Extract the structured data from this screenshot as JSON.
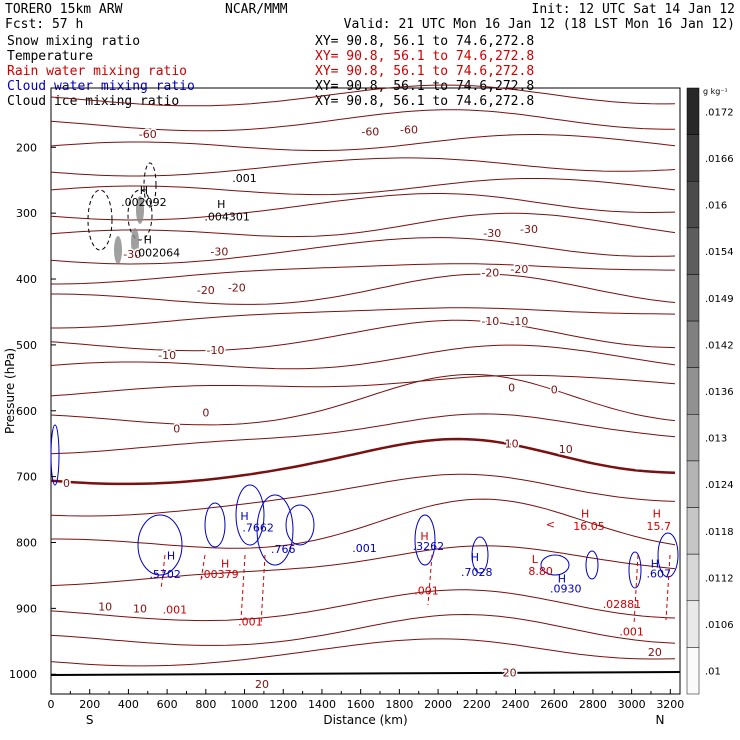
{
  "header": {
    "model": "TORERO  15km ARW",
    "org": "NCAR/MMM",
    "init": "Init: 12 UTC Sat 14 Jan 12",
    "fcst": "Fcst:   57 h",
    "valid": "Valid: 21 UTC Mon 16 Jan 12 (18 LST Mon 16 Jan 12)"
  },
  "fields": [
    {
      "name": "Snow mixing ratio",
      "xy": "XY=  90.8, 56.1 to  74.6,272.8",
      "color": "#000000",
      "xycolor": "#000000"
    },
    {
      "name": "Temperature",
      "xy": "XY=  90.8, 56.1 to  74.6,272.8",
      "color": "#000000",
      "xycolor": "#d00000"
    },
    {
      "name": "Rain water mixing ratio",
      "xy": "XY=  90.8, 56.1 to  74.6,272.8",
      "color": "#d00000",
      "xycolor": "#d00000"
    },
    {
      "name": "Cloud water mixing ratio",
      "xy": "XY=  90.8, 56.1 to  74.6,272.8",
      "color": "#0000c0",
      "xycolor": "#000000"
    },
    {
      "name": "Cloud ice mixing ratio",
      "xy": "XY=  90.8, 56.1 to  74.6,272.8",
      "color": "#000000",
      "xycolor": "#000000"
    }
  ],
  "chart_data": {
    "type": "contour",
    "xlabel": "Distance (km)",
    "ylabel": "Pressure (hPa)",
    "xlim": [
      0,
      3250
    ],
    "ylim": [
      110,
      1030
    ],
    "y_log": false,
    "x_ticks": [
      0,
      200,
      400,
      600,
      800,
      1000,
      1200,
      1400,
      1600,
      1800,
      2000,
      2200,
      2400,
      2600,
      2800,
      3000,
      3200
    ],
    "y_ticks": [
      200,
      300,
      400,
      500,
      600,
      700,
      800,
      900,
      1000
    ],
    "x_end_labels": {
      "left": "S",
      "right": "N"
    },
    "colorbar": {
      "unit": "g kg⁻¹",
      "labels": [
        ".0172",
        ".0166",
        ".016",
        ".0154",
        ".0149",
        ".0142",
        ".0136",
        ".013",
        ".0124",
        ".0118",
        ".0112",
        ".0106",
        ".01"
      ]
    },
    "temperature_labels": [
      {
        "x": 500,
        "p": 180,
        "text": "-60"
      },
      {
        "x": 1650,
        "p": 176,
        "text": "-60"
      },
      {
        "x": 1850,
        "p": 173,
        "text": "-60"
      },
      {
        "x": 870,
        "p": 358,
        "text": "-30"
      },
      {
        "x": 2280,
        "p": 330,
        "text": "-30"
      },
      {
        "x": 2470,
        "p": 324,
        "text": "-30"
      },
      {
        "x": 420,
        "p": 362,
        "text": "-30"
      },
      {
        "x": 800,
        "p": 417,
        "text": "-20"
      },
      {
        "x": 960,
        "p": 413,
        "text": "-20"
      },
      {
        "x": 2270,
        "p": 390,
        "text": "-20"
      },
      {
        "x": 2420,
        "p": 385,
        "text": "-20"
      },
      {
        "x": 600,
        "p": 515,
        "text": "-10"
      },
      {
        "x": 850,
        "p": 508,
        "text": "-10"
      },
      {
        "x": 2270,
        "p": 464,
        "text": "-10"
      },
      {
        "x": 2420,
        "p": 464,
        "text": "-10"
      },
      {
        "x": 800,
        "p": 603,
        "text": "0"
      },
      {
        "x": 650,
        "p": 627,
        "text": "0"
      },
      {
        "x": 2380,
        "p": 565,
        "text": "0"
      },
      {
        "x": 2600,
        "p": 568,
        "text": "0"
      },
      {
        "x": 80,
        "p": 710,
        "text": "0"
      },
      {
        "x": 2380,
        "p": 650,
        "text": "10"
      },
      {
        "x": 2660,
        "p": 658,
        "text": "10"
      },
      {
        "x": 280,
        "p": 897,
        "text": "10"
      },
      {
        "x": 460,
        "p": 900,
        "text": "10"
      },
      {
        "x": 2370,
        "p": 997,
        "text": "20"
      },
      {
        "x": 3120,
        "p": 966,
        "text": "20"
      },
      {
        "x": 1090,
        "p": 1015,
        "text": "20"
      }
    ],
    "cloud_labels": [
      {
        "x": 480,
        "p": 265,
        "text": "H",
        "color": "#000000"
      },
      {
        "x": 480,
        "p": 283,
        "text": ".002092",
        "color": "#000000"
      },
      {
        "x": 880,
        "p": 286,
        "text": "H",
        "color": "#000000"
      },
      {
        "x": 910,
        "p": 305,
        "text": ".004301",
        "color": "#000000"
      },
      {
        "x": 500,
        "p": 340,
        "text": "H",
        "color": "#000000"
      },
      {
        "x": 550,
        "p": 360,
        "text": ".002064",
        "color": "#000000"
      },
      {
        "x": 1000,
        "p": 247,
        "text": ".001",
        "color": "#000000"
      },
      {
        "x": 1620,
        "p": 808,
        "text": ".001",
        "color": "#0000c0"
      },
      {
        "x": 1070,
        "p": 777,
        "text": ".7662",
        "color": "#0000c0"
      },
      {
        "x": 1000,
        "p": 760,
        "text": "H",
        "color": "#0000c0"
      },
      {
        "x": 900,
        "p": 832,
        "text": "H",
        "color": "#d00000"
      },
      {
        "x": 1200,
        "p": 810,
        "text": ".766",
        "color": "#0000c0"
      },
      {
        "x": 870,
        "p": 848,
        "text": ".00379",
        "color": "#d00000"
      },
      {
        "x": 620,
        "p": 820,
        "text": "H",
        "color": "#0000c0"
      },
      {
        "x": 590,
        "p": 848,
        "text": ".5702",
        "color": "#0000c0"
      },
      {
        "x": 640,
        "p": 902,
        "text": ".001",
        "color": "#d00000"
      },
      {
        "x": 1030,
        "p": 920,
        "text": ".001",
        "color": "#d00000"
      },
      {
        "x": 1930,
        "p": 790,
        "text": "H",
        "color": "#d00000"
      },
      {
        "x": 1950,
        "p": 805,
        "text": ".3262",
        "color": "#0000c0"
      },
      {
        "x": 1940,
        "p": 873,
        "text": ".001",
        "color": "#d00000"
      },
      {
        "x": 2190,
        "p": 822,
        "text": "H",
        "color": "#0000c0"
      },
      {
        "x": 2200,
        "p": 845,
        "text": ".7028",
        "color": "#0000c0"
      },
      {
        "x": 2500,
        "p": 825,
        "text": "L",
        "color": "#d00000"
      },
      {
        "x": 2530,
        "p": 843,
        "text": "8.80",
        "color": "#d00000"
      },
      {
        "x": 2640,
        "p": 855,
        "text": "H",
        "color": "#0000c0"
      },
      {
        "x": 2660,
        "p": 870,
        "text": ".0930",
        "color": "#0000c0"
      },
      {
        "x": 2580,
        "p": 772,
        "text": "<",
        "color": "#d00000"
      },
      {
        "x": 2760,
        "p": 756,
        "text": "H",
        "color": "#d00000"
      },
      {
        "x": 2780,
        "p": 775,
        "text": "16.05",
        "color": "#d00000"
      },
      {
        "x": 3130,
        "p": 756,
        "text": "H",
        "color": "#d00000"
      },
      {
        "x": 3140,
        "p": 775,
        "text": "15.7",
        "color": "#d00000"
      },
      {
        "x": 3120,
        "p": 832,
        "text": "H",
        "color": "#0000c0"
      },
      {
        "x": 3140,
        "p": 847,
        "text": ".607",
        "color": "#0000c0"
      },
      {
        "x": 2950,
        "p": 893,
        "text": ".02881",
        "color": "#d00000"
      },
      {
        "x": 3000,
        "p": 935,
        "text": ".001",
        "color": "#d00000"
      }
    ]
  }
}
